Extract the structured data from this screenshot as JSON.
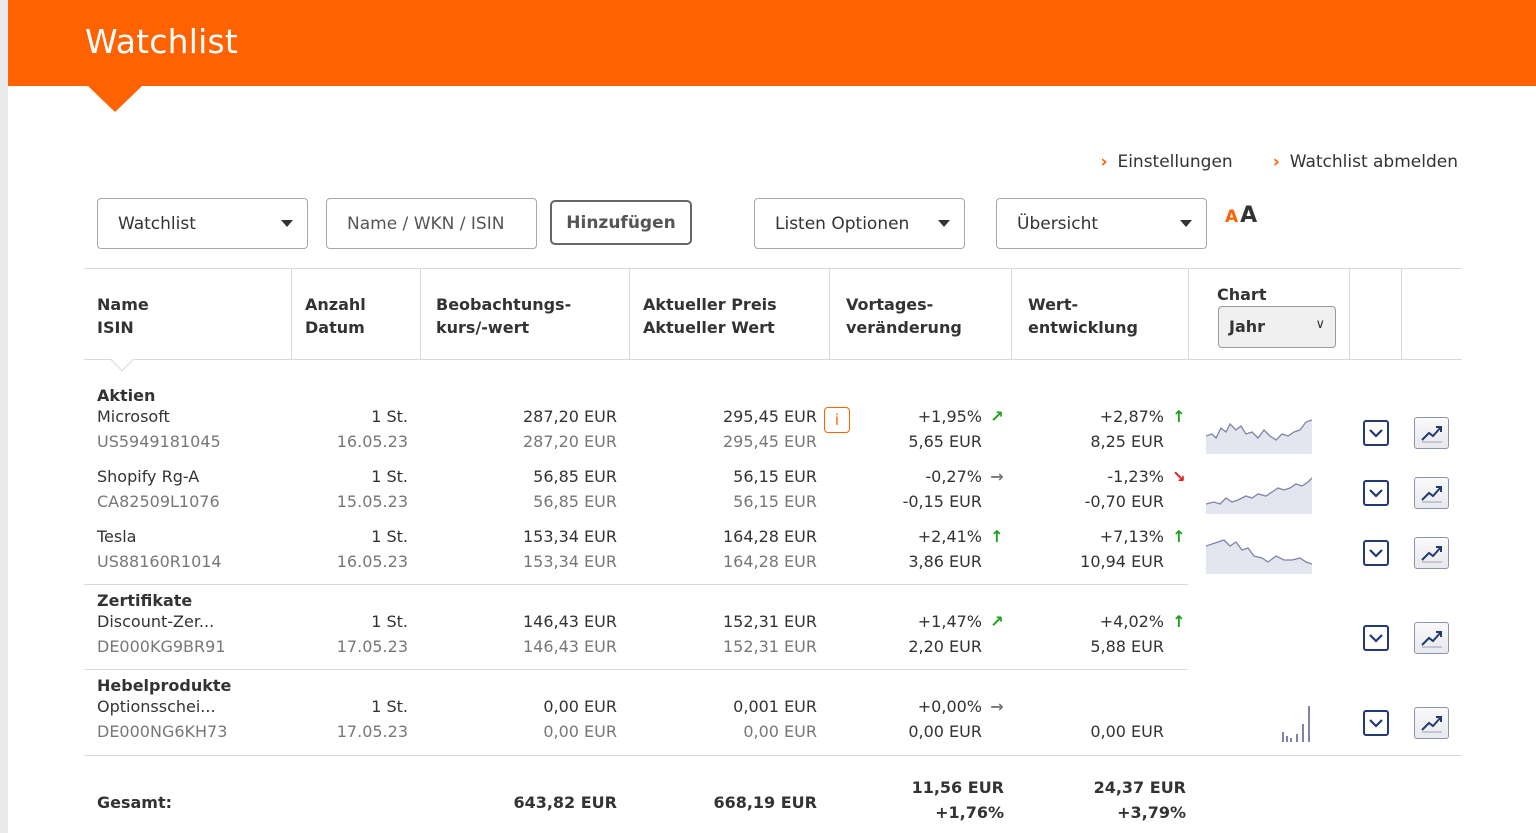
{
  "header": {
    "title": "Watchlist"
  },
  "top_links": {
    "settings": "Einstellungen",
    "unsubscribe": "Watchlist abmelden"
  },
  "controls": {
    "watchlist_select": "Watchlist",
    "search_placeholder": "Name / WKN / ISIN",
    "add_button": "Hinzufügen",
    "list_options": "Listen Optionen",
    "view_select": "Übersicht",
    "font_small": "A",
    "font_large": "A"
  },
  "columns": {
    "name": [
      "Name",
      "ISIN"
    ],
    "qty": [
      "Anzahl",
      "Datum"
    ],
    "watch": [
      "Beobachtungs-",
      "kurs/-wert"
    ],
    "current": [
      "Aktueller Preis",
      "Aktueller Wert"
    ],
    "daily": [
      "Vortages-",
      "veränderung"
    ],
    "perf": [
      "Wert-",
      "entwicklung"
    ],
    "chart": "Chart",
    "chart_period": "Jahr"
  },
  "groups": [
    {
      "title": "Aktien",
      "rows": [
        {
          "name": "Microsoft",
          "isin": "US5949181045",
          "qty": "1 St.",
          "date": "16.05.23",
          "watch_price": "287,20 EUR",
          "watch_value": "287,20 EUR",
          "cur_price": "295,45 EUR",
          "cur_value": "295,45 EUR",
          "day_pct": "+1,95%",
          "day_abs": "5,65 EUR",
          "day_arrow": "↗",
          "day_trend": "pos",
          "perf_pct": "+2,87%",
          "perf_abs": "8,25 EUR",
          "perf_arrow": "↑",
          "perf_trend": "pos",
          "info": "i"
        },
        {
          "name": "Shopify Rg-A",
          "isin": "CA82509L1076",
          "qty": "1 St.",
          "date": "15.05.23",
          "watch_price": "56,85 EUR",
          "watch_value": "56,85 EUR",
          "cur_price": "56,15 EUR",
          "cur_value": "56,15 EUR",
          "day_pct": "-0,27%",
          "day_abs": "-0,15 EUR",
          "day_arrow": "→",
          "day_trend": "neg",
          "perf_pct": "-1,23%",
          "perf_abs": "-0,70 EUR",
          "perf_arrow": "↘",
          "perf_trend": "neg"
        },
        {
          "name": "Tesla",
          "isin": "US88160R1014",
          "qty": "1 St.",
          "date": "16.05.23",
          "watch_price": "153,34 EUR",
          "watch_value": "153,34 EUR",
          "cur_price": "164,28 EUR",
          "cur_value": "164,28 EUR",
          "day_pct": "+2,41%",
          "day_abs": "3,86 EUR",
          "day_arrow": "↑",
          "day_trend": "pos",
          "perf_pct": "+7,13%",
          "perf_abs": "10,94 EUR",
          "perf_arrow": "↑",
          "perf_trend": "pos"
        }
      ]
    },
    {
      "title": "Zertifikate",
      "rows": [
        {
          "name": "Discount-Zer...",
          "isin": "DE000KG9BR91",
          "qty": "1 St.",
          "date": "17.05.23",
          "watch_price": "146,43 EUR",
          "watch_value": "146,43 EUR",
          "cur_price": "152,31 EUR",
          "cur_value": "152,31 EUR",
          "day_pct": "+1,47%",
          "day_abs": "2,20 EUR",
          "day_arrow": "↗",
          "day_trend": "pos",
          "perf_pct": "+4,02%",
          "perf_abs": "5,88 EUR",
          "perf_arrow": "↑",
          "perf_trend": "pos"
        }
      ]
    },
    {
      "title": "Hebelprodukte",
      "rows": [
        {
          "name": "Optionsschei...",
          "isin": "DE000NG6KH73",
          "qty": "1 St.",
          "date": "17.05.23",
          "watch_price": "0,00 EUR",
          "watch_value": "0,00 EUR",
          "cur_price": "0,001 EUR",
          "cur_value": "0,00 EUR",
          "day_pct": "+0,00%",
          "day_abs": "0,00 EUR",
          "day_arrow": "→",
          "day_trend": "dark",
          "perf_pct": "",
          "perf_abs": "0,00 EUR",
          "perf_arrow": "",
          "perf_trend": "dark"
        }
      ]
    }
  ],
  "total": {
    "label": "Gesamt:",
    "watch": "643,82 EUR",
    "current": "668,19 EUR",
    "day_abs": "11,56 EUR",
    "day_pct": "+1,76%",
    "perf_abs": "24,37 EUR",
    "perf_pct": "+3,79%"
  },
  "colors": {
    "brand": "#ff6200",
    "positive": "#1aa31a",
    "negative": "#e02020",
    "icon": "#213a74"
  }
}
